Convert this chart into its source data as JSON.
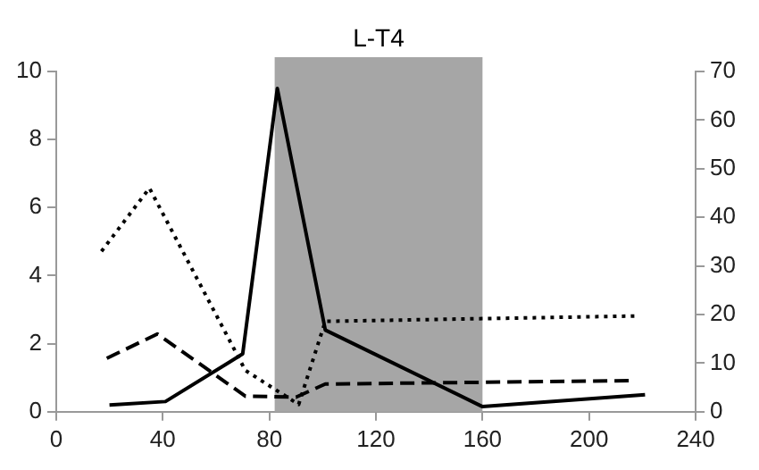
{
  "chart_data": {
    "type": "line",
    "xlim": [
      0,
      240
    ],
    "xticks": [
      0,
      40,
      80,
      120,
      160,
      200,
      240
    ],
    "ylim": [
      0,
      10
    ],
    "yticks": [
      0,
      2,
      4,
      6,
      8,
      10
    ],
    "y2lim": [
      0,
      70
    ],
    "y2ticks": [
      0,
      10,
      20,
      30,
      40,
      50,
      60,
      70
    ],
    "grid": false,
    "legend": false,
    "marker": "none",
    "bands": [
      {
        "axis": "x",
        "from": 82,
        "to": 160,
        "label": "L-T4",
        "color": "#a6a6a6"
      }
    ],
    "series": [
      {
        "color": "#000000",
        "line_style": "solid",
        "x": [
          20,
          41,
          70,
          83,
          101,
          160,
          221
        ],
        "values": [
          0.2,
          0.3,
          1.7,
          9.5,
          2.4,
          0.15,
          0.5
        ]
      },
      {
        "color": "#000000",
        "line_style": "dotted",
        "axis": "y2",
        "x": [
          17,
          35,
          71,
          91,
          101,
          218
        ],
        "values": [
          33,
          46,
          8.5,
          1.5,
          18.6,
          19.7
        ]
      },
      {
        "color": "#000000",
        "line_style": "dashed",
        "axis": "y2",
        "x": [
          19,
          38,
          71,
          90,
          101,
          216
        ],
        "values": [
          11,
          16,
          3.2,
          3,
          5.7,
          6.4
        ]
      }
    ]
  }
}
